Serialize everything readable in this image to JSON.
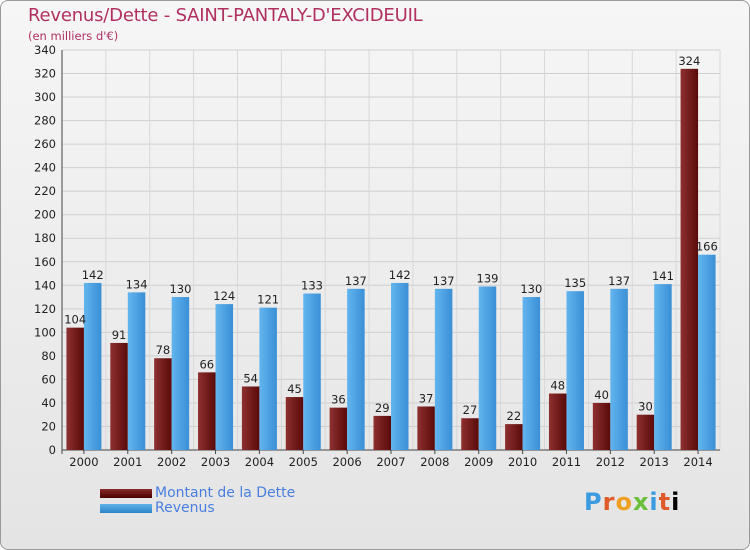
{
  "chart_data": {
    "type": "bar",
    "title": "Revenus/Dette - SAINT-PANTALY-D'EXCIDEUIL",
    "subtitle": "(en milliers d'€)",
    "categories": [
      "2000",
      "2001",
      "2002",
      "2003",
      "2004",
      "2005",
      "2006",
      "2007",
      "2008",
      "2009",
      "2010",
      "2011",
      "2012",
      "2013",
      "2014"
    ],
    "series": [
      {
        "name": "Montant de la Dette",
        "color": "#7a1a1a",
        "values": [
          104,
          91,
          78,
          66,
          54,
          45,
          36,
          29,
          37,
          27,
          22,
          48,
          40,
          30,
          324
        ]
      },
      {
        "name": "Revenus",
        "color": "#4aa3e6",
        "values": [
          142,
          134,
          130,
          124,
          121,
          133,
          137,
          142,
          137,
          139,
          130,
          135,
          137,
          141,
          166
        ]
      }
    ],
    "ylim": [
      0,
      340
    ],
    "yticks": [
      0,
      20,
      40,
      60,
      80,
      100,
      120,
      140,
      160,
      180,
      200,
      220,
      240,
      260,
      280,
      300,
      320,
      340
    ],
    "grid": true,
    "legend": "bottom-left"
  },
  "legend": {
    "dette_label": "Montant de la Dette",
    "revenus_label": "Revenus"
  },
  "brand": {
    "letters": [
      "P",
      "r",
      "o",
      "x",
      "i",
      "t",
      "i"
    ]
  }
}
